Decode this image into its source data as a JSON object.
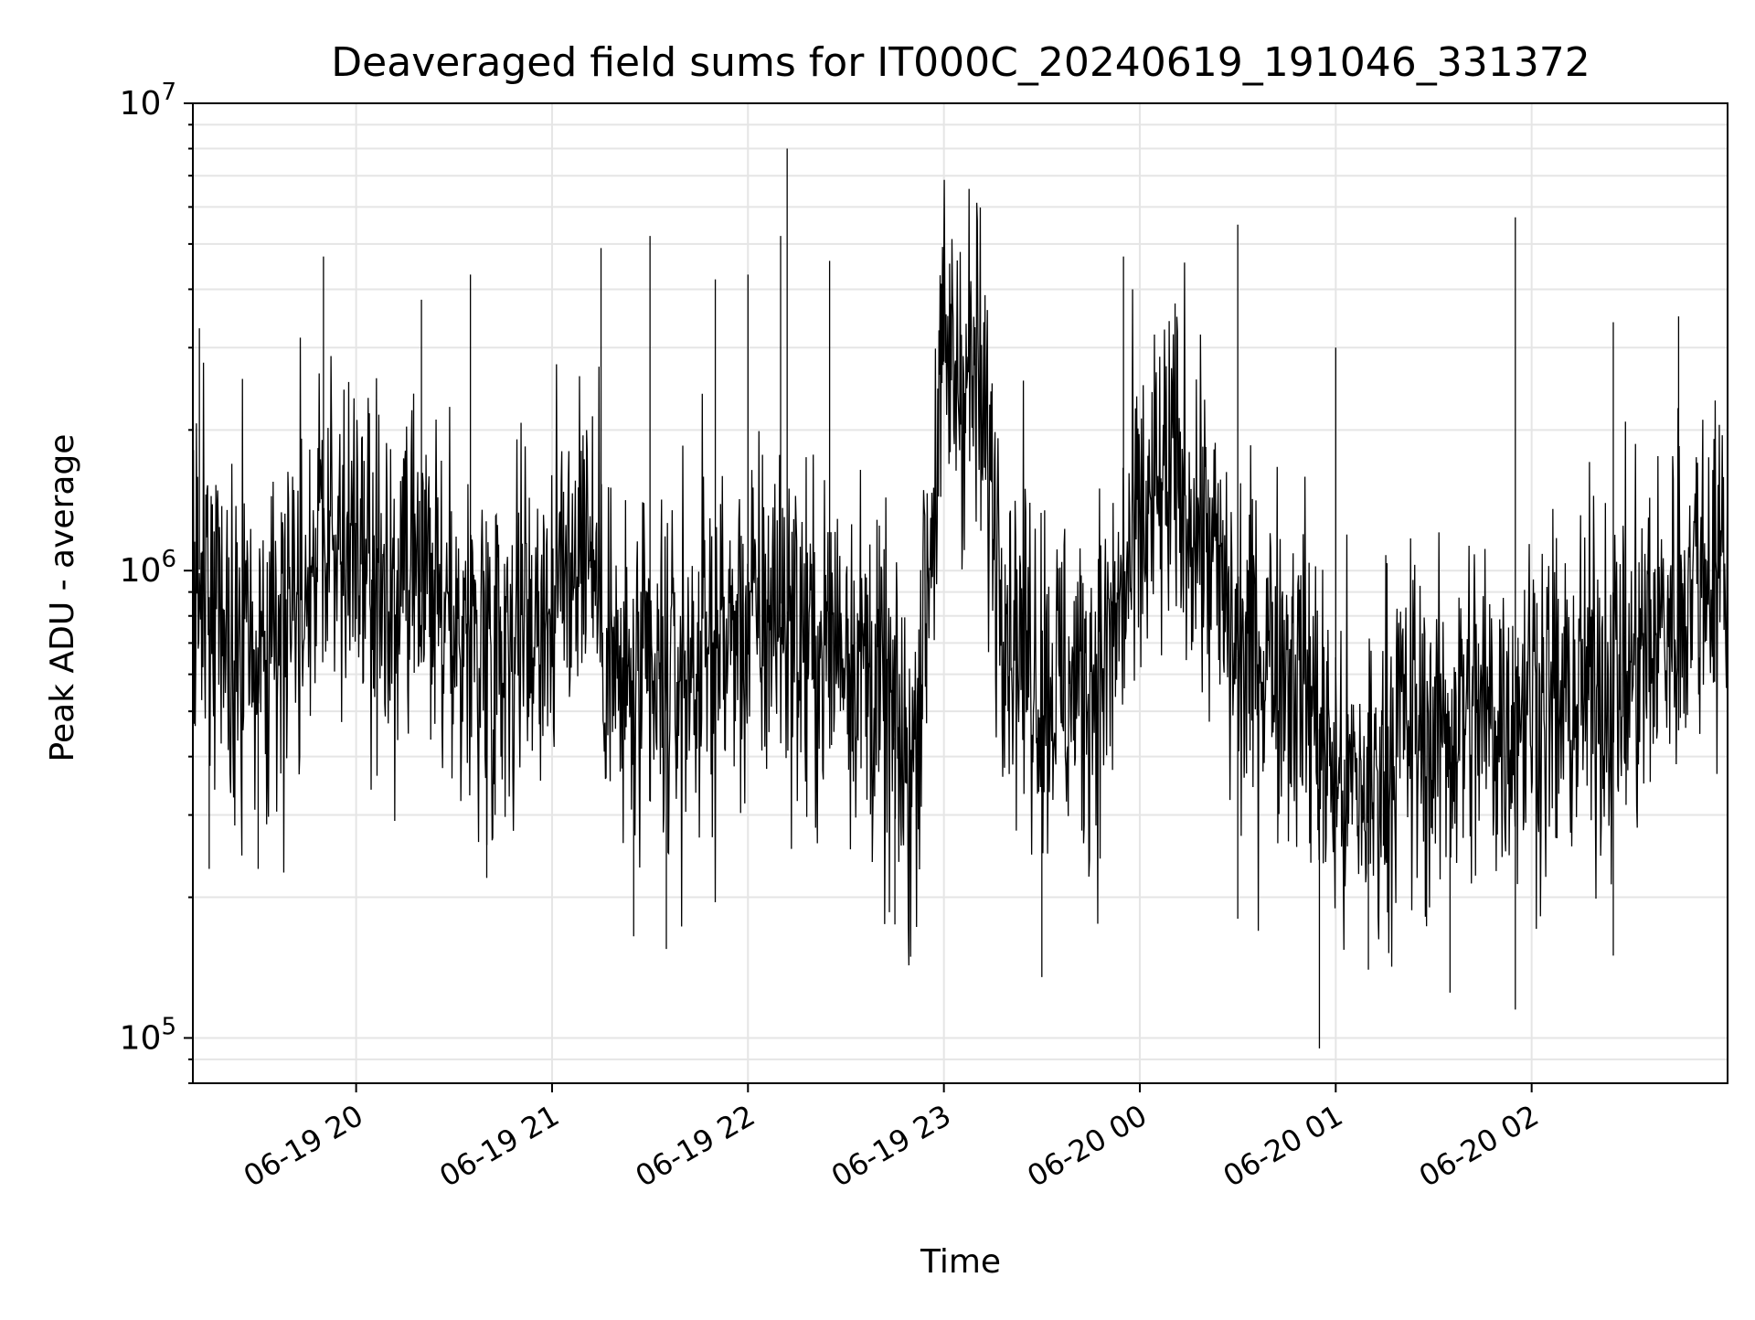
{
  "chart_data": {
    "type": "line",
    "title": "Deaveraged field sums for IT000C_20240619_191046_331372",
    "xlabel": "Time",
    "ylabel": "Peak ADU - average",
    "yscale": "log",
    "ylim": [
      80000,
      10000000
    ],
    "xlim": [
      "2024-06-19 19:10",
      "2024-06-20 03:00"
    ],
    "grid": true,
    "legend": "none",
    "colors": {
      "line": "#000000",
      "grid": "#e5e5e5",
      "axes": "#000000",
      "background": "#ffffff"
    },
    "x_ticks": [
      {
        "label": "06-19 20",
        "time": "2024-06-19 20:00"
      },
      {
        "label": "06-19 21",
        "time": "2024-06-19 21:00"
      },
      {
        "label": "06-19 22",
        "time": "2024-06-19 22:00"
      },
      {
        "label": "06-19 23",
        "time": "2024-06-19 23:00"
      },
      {
        "label": "06-20 00",
        "time": "2024-06-20 00:00"
      },
      {
        "label": "06-20 01",
        "time": "2024-06-20 01:00"
      },
      {
        "label": "06-20 02",
        "time": "2024-06-20 02:00"
      }
    ],
    "y_ticks": [
      {
        "base": "10",
        "exp": "5",
        "value": 100000
      },
      {
        "base": "10",
        "exp": "6",
        "value": 1000000
      },
      {
        "base": "10",
        "exp": "7",
        "value": 10000000
      }
    ],
    "series": [
      {
        "color": "#000000",
        "x": [
          "2024-06-19 19:10",
          "2024-06-19 19:20",
          "2024-06-19 19:30",
          "2024-06-19 19:40",
          "2024-06-19 19:50",
          "2024-06-19 20:00",
          "2024-06-19 20:10",
          "2024-06-19 20:20",
          "2024-06-19 20:30",
          "2024-06-19 20:40",
          "2024-06-19 20:50",
          "2024-06-19 21:00",
          "2024-06-19 21:10",
          "2024-06-19 21:20",
          "2024-06-19 21:30",
          "2024-06-19 21:40",
          "2024-06-19 21:50",
          "2024-06-19 22:00",
          "2024-06-19 22:10",
          "2024-06-19 22:20",
          "2024-06-19 22:30",
          "2024-06-19 22:40",
          "2024-06-19 22:50",
          "2024-06-19 23:00",
          "2024-06-19 23:10",
          "2024-06-19 23:20",
          "2024-06-19 23:30",
          "2024-06-19 23:40",
          "2024-06-19 23:50",
          "2024-06-20 00:00",
          "2024-06-20 00:10",
          "2024-06-20 00:20",
          "2024-06-20 00:30",
          "2024-06-20 00:40",
          "2024-06-20 00:50",
          "2024-06-20 01:00",
          "2024-06-20 01:10",
          "2024-06-20 01:20",
          "2024-06-20 01:30",
          "2024-06-20 01:40",
          "2024-06-20 01:50",
          "2024-06-20 02:00",
          "2024-06-20 02:10",
          "2024-06-20 02:20",
          "2024-06-20 02:30",
          "2024-06-20 02:40",
          "2024-06-20 02:50",
          "2024-06-20 03:00"
        ],
        "values": [
          1100000,
          700000,
          650000,
          900000,
          1200000,
          1050000,
          800000,
          900000,
          750000,
          700000,
          800000,
          850000,
          1300000,
          550000,
          520000,
          600000,
          700000,
          750000,
          850000,
          650000,
          750000,
          550000,
          350000,
          2800000,
          2600000,
          800000,
          600000,
          550000,
          650000,
          1200000,
          1600000,
          1200000,
          650000,
          700000,
          600000,
          350000,
          330000,
          480000,
          430000,
          500000,
          480000,
          550000,
          500000,
          580000,
          600000,
          750000,
          1000000,
          1100000
        ]
      }
    ],
    "spike_highs": [
      {
        "time": "2024-06-19 19:12",
        "value": 3300000
      },
      {
        "time": "2024-06-19 19:50",
        "value": 4700000
      },
      {
        "time": "2024-06-19 20:20",
        "value": 3800000
      },
      {
        "time": "2024-06-19 20:35",
        "value": 4300000
      },
      {
        "time": "2024-06-19 21:15",
        "value": 4900000
      },
      {
        "time": "2024-06-19 21:30",
        "value": 5200000
      },
      {
        "time": "2024-06-19 21:50",
        "value": 4200000
      },
      {
        "time": "2024-06-19 22:00",
        "value": 4300000
      },
      {
        "time": "2024-06-19 22:10",
        "value": 5200000
      },
      {
        "time": "2024-06-19 22:12",
        "value": 8000000
      },
      {
        "time": "2024-06-19 22:25",
        "value": 4600000
      },
      {
        "time": "2024-06-19 23:00",
        "value": 4400000
      },
      {
        "time": "2024-06-19 23:55",
        "value": 4700000
      },
      {
        "time": "2024-06-20 00:30",
        "value": 5500000
      },
      {
        "time": "2024-06-20 01:00",
        "value": 3000000
      },
      {
        "time": "2024-06-20 01:55",
        "value": 5700000
      },
      {
        "time": "2024-06-20 02:25",
        "value": 3400000
      },
      {
        "time": "2024-06-20 02:45",
        "value": 3500000
      }
    ],
    "spike_lows": [
      {
        "time": "2024-06-19 19:15",
        "value": 230000
      },
      {
        "time": "2024-06-19 19:30",
        "value": 230000
      },
      {
        "time": "2024-06-19 20:40",
        "value": 220000
      },
      {
        "time": "2024-06-19 21:25",
        "value": 165000
      },
      {
        "time": "2024-06-19 21:35",
        "value": 155000
      },
      {
        "time": "2024-06-19 22:45",
        "value": 175000
      },
      {
        "time": "2024-06-19 23:30",
        "value": 135000
      },
      {
        "time": "2024-06-20 00:30",
        "value": 180000
      },
      {
        "time": "2024-06-20 00:55",
        "value": 95000
      },
      {
        "time": "2024-06-20 01:10",
        "value": 140000
      },
      {
        "time": "2024-06-20 01:35",
        "value": 125000
      },
      {
        "time": "2024-06-20 01:55",
        "value": 115000
      },
      {
        "time": "2024-06-20 02:25",
        "value": 150000
      }
    ]
  }
}
